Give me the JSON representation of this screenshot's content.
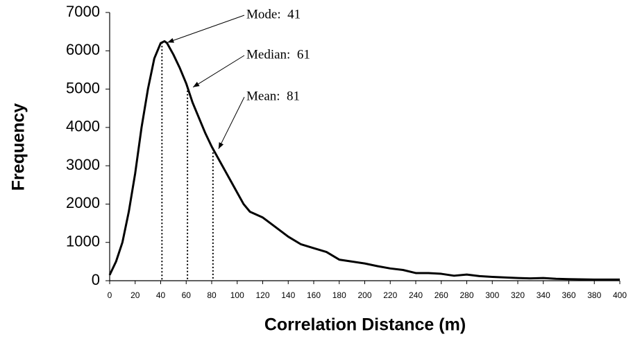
{
  "chart_data": {
    "type": "line",
    "x_label": "Correlation Distance (m)",
    "y_label": "Frequency",
    "x": [
      0,
      5,
      10,
      15,
      20,
      25,
      30,
      35,
      40,
      43,
      45,
      50,
      55,
      60,
      65,
      70,
      75,
      80,
      85,
      90,
      95,
      100,
      105,
      110,
      120,
      130,
      140,
      150,
      160,
      170,
      180,
      190,
      200,
      210,
      220,
      230,
      240,
      250,
      260,
      270,
      280,
      290,
      300,
      320,
      330,
      340,
      350,
      360,
      380,
      400
    ],
    "values": [
      150,
      500,
      1000,
      1800,
      2800,
      4000,
      5000,
      5800,
      6200,
      6250,
      6200,
      5900,
      5550,
      5150,
      4650,
      4250,
      3850,
      3500,
      3200,
      2900,
      2600,
      2300,
      2000,
      1800,
      1650,
      1400,
      1150,
      950,
      850,
      750,
      550,
      500,
      450,
      380,
      320,
      280,
      200,
      200,
      180,
      130,
      160,
      120,
      100,
      70,
      60,
      70,
      50,
      40,
      30,
      30
    ],
    "color": "#000000",
    "xlim": [
      0,
      400
    ],
    "xticks": [
      0,
      20,
      40,
      60,
      80,
      100,
      120,
      140,
      160,
      180,
      200,
      220,
      240,
      260,
      280,
      300,
      320,
      340,
      360,
      380,
      400
    ],
    "ylim": [
      0,
      7000
    ],
    "yticks": [
      0,
      1000,
      2000,
      3000,
      4000,
      5000,
      6000,
      7000
    ],
    "grid": false,
    "annotations": [
      {
        "text": "Mode:  41",
        "x": 41
      },
      {
        "text": "Median:  61",
        "x": 61
      },
      {
        "text": "Mean:  81",
        "x": 81
      }
    ]
  }
}
